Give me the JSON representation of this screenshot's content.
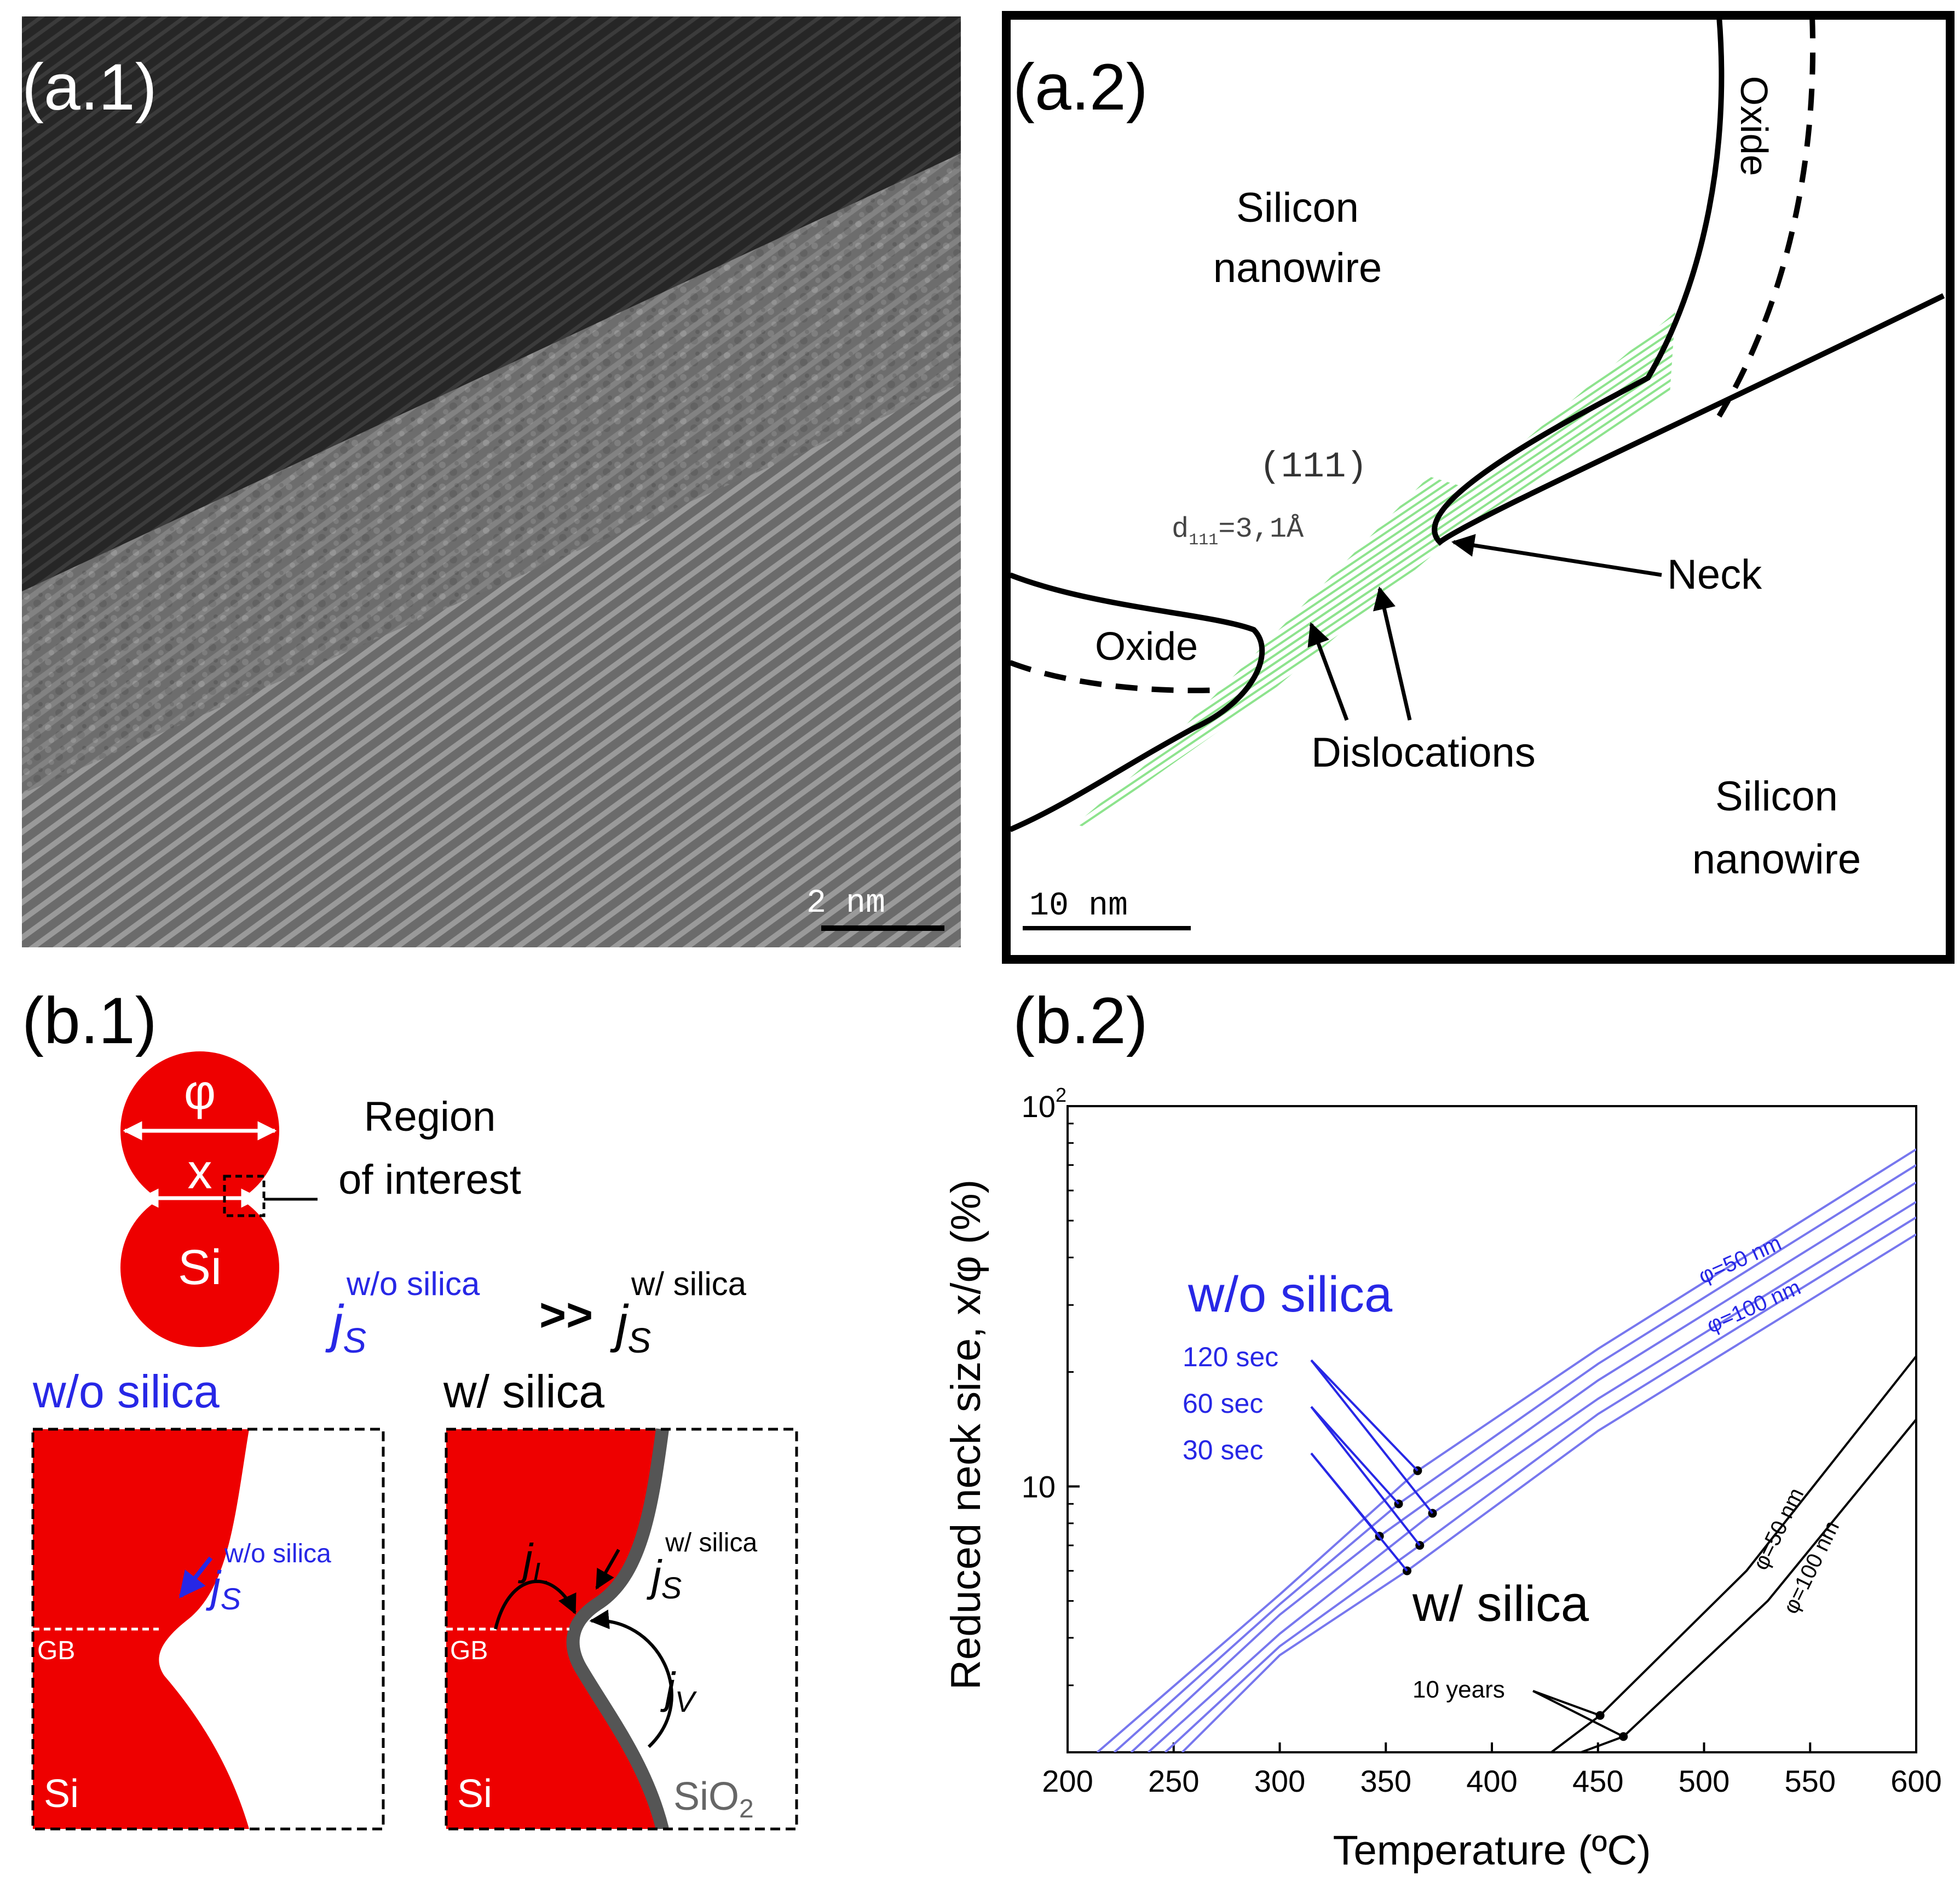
{
  "colors": {
    "blue": "#2727e6",
    "red": "#ee0000",
    "green": "#8de38d",
    "sio2_gray": "#555555",
    "curve_blue": "#7777ee",
    "tem_dark": "#2b2b2b",
    "tem_light": "#8a8a8a"
  },
  "panel_a1": {
    "label": "(a.1)",
    "scale_bar": "2 nm"
  },
  "panel_a2": {
    "label": "(a.2)",
    "silicon_top": [
      "Silicon",
      "nanowire"
    ],
    "oxide_top": "Oxide",
    "plane": "(111)",
    "spacing_d": "d",
    "spacing_sub": "111",
    "spacing_val": "=3,1Å",
    "oxide_left": "Oxide",
    "neck": "Neck",
    "dislocations": "Dislocations",
    "silicon_bottom": [
      "Silicon",
      "nanowire"
    ],
    "scale_bar": "10 nm"
  },
  "panel_b1": {
    "label": "(b.1)",
    "phi": "φ",
    "x": "x",
    "si": "Si",
    "region": [
      "Region",
      "of interest"
    ],
    "j": "j",
    "sub_s": "S",
    "sup_without": "w/o silica",
    "sup_with": "w/ silica",
    "gg": ">>",
    "title_without": "w/o silica",
    "title_with": "w/ silica",
    "gb": "GB",
    "sub_l": "L",
    "sub_v": "V",
    "sio2": "SiO",
    "sio2_sub": "2"
  },
  "panel_b2": {
    "label": "(b.2)",
    "wo_silica": "w/o silica",
    "w_silica": "w/ silica",
    "time_labels": [
      "120 sec",
      "60 sec",
      "30 sec"
    ],
    "ten_years": "10 years",
    "phi50": "φ=50 nm",
    "phi100": "φ=100 nm",
    "ylabel": "Reduced neck size, x/φ (%)",
    "xlabel": "Temperature (ºC)"
  },
  "chart_data": {
    "type": "line",
    "title": "",
    "xlabel": "Temperature (ºC)",
    "ylabel": "Reduced neck size, x/φ (%)",
    "xlim": [
      200,
      600
    ],
    "ylim": [
      2,
      100
    ],
    "yscale": "log",
    "x_ticks": [
      200,
      250,
      300,
      350,
      400,
      450,
      500,
      550,
      600
    ],
    "y_ticks": [
      {
        "value": 10,
        "label": "10"
      },
      {
        "value": 100,
        "label": "10",
        "sup": "2"
      }
    ],
    "series": [
      {
        "name": "w/o silica, φ=50 nm, 120 sec",
        "x": [
          214,
          300,
          365,
          450,
          600
        ],
        "y": [
          2,
          5.2,
          11,
          23,
          77
        ]
      },
      {
        "name": "w/o silica, φ=50 nm, 60 sec",
        "x": [
          222,
          300,
          356,
          450,
          600
        ],
        "y": [
          2,
          4.9,
          9,
          21,
          70
        ]
      },
      {
        "name": "w/o silica, φ=50 nm, 30 sec",
        "x": [
          230,
          300,
          347,
          450,
          600
        ],
        "y": [
          2,
          4.6,
          7.4,
          19,
          63
        ]
      },
      {
        "name": "w/o silica, φ=100 nm, 120 sec",
        "x": [
          238,
          300,
          372,
          450,
          600
        ],
        "y": [
          2,
          4.1,
          8.5,
          17,
          56
        ]
      },
      {
        "name": "w/o silica, φ=100 nm, 60 sec",
        "x": [
          246,
          300,
          366,
          450,
          600
        ],
        "y": [
          2,
          3.8,
          7.0,
          15.5,
          51
        ]
      },
      {
        "name": "w/o silica, φ=100 nm, 30 sec",
        "x": [
          254,
          300,
          360,
          450,
          600
        ],
        "y": [
          2,
          3.6,
          6.0,
          14,
          46
        ]
      },
      {
        "name": "w/ silica, φ=50 nm, 10 years",
        "x": [
          428,
          451,
          520,
          600
        ],
        "y": [
          2,
          2.5,
          6,
          22
        ]
      },
      {
        "name": "w/ silica, φ=100 nm, 10 years",
        "x": [
          442,
          462,
          530,
          600
        ],
        "y": [
          2,
          2.2,
          5,
          15
        ]
      }
    ],
    "annotations": [
      "w/o silica",
      "w/ silica",
      "120 sec",
      "60 sec",
      "30 sec",
      "10 years",
      "φ=50 nm",
      "φ=100 nm"
    ]
  }
}
